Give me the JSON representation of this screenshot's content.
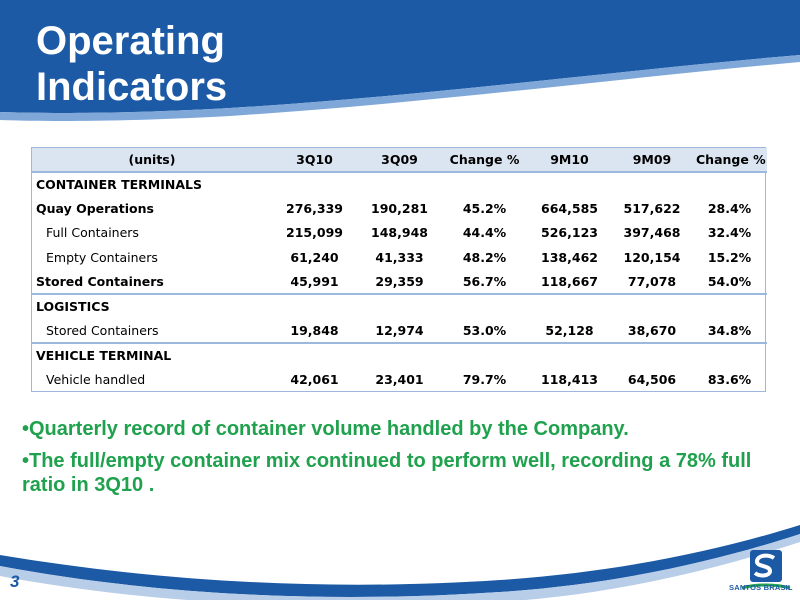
{
  "slide": {
    "title_line1": "Operating",
    "title_line2": "Indicators",
    "page_number": "3",
    "brand": "SANTOS BRASIL",
    "colors": {
      "header_blue": "#1c5aa6",
      "bullet_green": "#1fa14d",
      "table_header_bg": "#dbe5f1",
      "table_border": "#9cb8dc"
    }
  },
  "table": {
    "headers": [
      "(units)",
      "3Q10",
      "3Q09",
      "Change %",
      "9M10",
      "9M09",
      "Change %"
    ],
    "rows": [
      {
        "label": "CONTAINER TERMINALS",
        "style": "section",
        "values": [
          "",
          "",
          "",
          "",
          "",
          ""
        ]
      },
      {
        "label": "Quay Operations",
        "style": "bold",
        "values": [
          "276,339",
          "190,281",
          "45.2%",
          "664,585",
          "517,622",
          "28.4%"
        ]
      },
      {
        "label": "Full Containers",
        "style": "sub",
        "values": [
          "215,099",
          "148,948",
          "44.4%",
          "526,123",
          "397,468",
          "32.4%"
        ]
      },
      {
        "label": "Empty Containers",
        "style": "sub",
        "values": [
          "61,240",
          "41,333",
          "48.2%",
          "138,462",
          "120,154",
          "15.2%"
        ]
      },
      {
        "label": "Stored Containers",
        "style": "bold",
        "values": [
          "45,991",
          "29,359",
          "56.7%",
          "118,667",
          "77,078",
          "54.0%"
        ]
      },
      {
        "label": "LOGISTICS",
        "style": "section",
        "values": [
          "",
          "",
          "",
          "",
          "",
          ""
        ]
      },
      {
        "label": "Stored Containers",
        "style": "sub",
        "values": [
          "19,848",
          "12,974",
          "53.0%",
          "52,128",
          "38,670",
          "34.8%"
        ]
      },
      {
        "label": "VEHICLE TERMINAL",
        "style": "section",
        "values": [
          "",
          "",
          "",
          "",
          "",
          ""
        ]
      },
      {
        "label": "Vehicle handled",
        "style": "sub",
        "values": [
          "42,061",
          "23,401",
          "79.7%",
          "118,413",
          "64,506",
          "83.6%"
        ]
      }
    ]
  },
  "bullets": [
    "•Quarterly record of container volume handled by the Company.",
    "•The full/empty container mix continued to perform well, recording a 78% full ratio in 3Q10 ."
  ]
}
